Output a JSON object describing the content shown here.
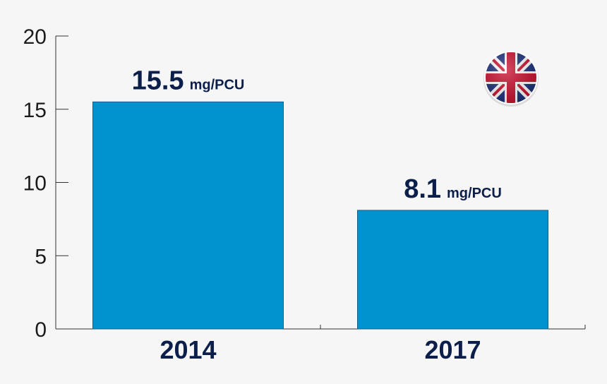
{
  "chart_data": {
    "type": "bar",
    "categories": [
      "2014",
      "2017"
    ],
    "values": [
      15.5,
      8.1
    ],
    "value_labels": [
      {
        "number": "15.5",
        "unit": "mg/PCU"
      },
      {
        "number": "8.1",
        "unit": "mg/PCU"
      }
    ],
    "y_ticks": [
      "0",
      "5",
      "10",
      "15",
      "20"
    ],
    "ylim": [
      0,
      20
    ],
    "grid": false,
    "bar_color": "#0192d0",
    "label_color": "#0b1f4a",
    "background_color": "#f6f6f7",
    "badge_icon": "uk-flag-icon"
  }
}
